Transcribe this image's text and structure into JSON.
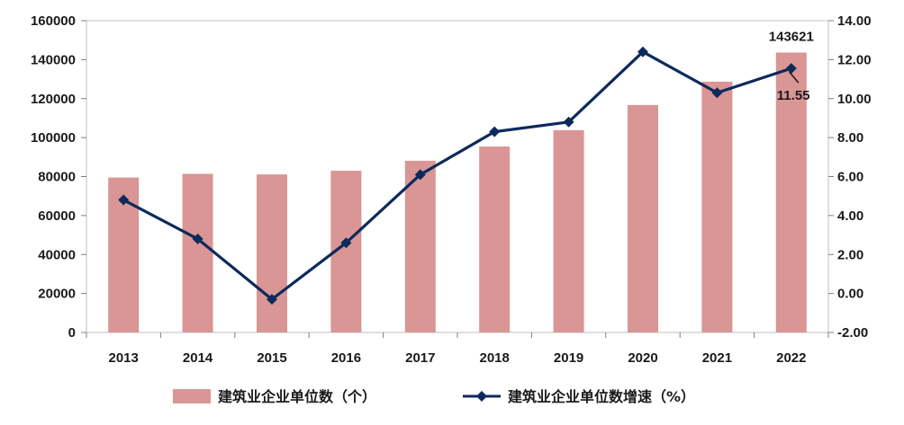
{
  "chart_data": {
    "type": "bar+line",
    "categories": [
      "2013",
      "2014",
      "2015",
      "2016",
      "2017",
      "2018",
      "2019",
      "2020",
      "2021",
      "2022"
    ],
    "series": [
      {
        "name": "建筑业企业单位数（个）",
        "type": "bar",
        "axis": "left",
        "color": "#d99694",
        "values": [
          79500,
          81400,
          81100,
          83000,
          88100,
          95400,
          103800,
          116700,
          128700,
          143621
        ]
      },
      {
        "name": "建筑业企业单位数增速（%）",
        "type": "line",
        "axis": "right",
        "color": "#0d2a5c",
        "values": [
          4.8,
          2.8,
          -0.3,
          2.6,
          6.1,
          8.3,
          8.8,
          12.4,
          10.3,
          11.55
        ]
      }
    ],
    "y_left": {
      "ylim": [
        0,
        160000
      ],
      "ticks": [
        "0",
        "20000",
        "40000",
        "60000",
        "80000",
        "100000",
        "120000",
        "140000",
        "160000"
      ]
    },
    "y_right": {
      "ylim": [
        -2,
        14
      ],
      "ticks": [
        "-2.00",
        "0.00",
        "2.00",
        "4.00",
        "6.00",
        "8.00",
        "10.00",
        "12.00",
        "14.00"
      ]
    },
    "annotations": [
      {
        "text": "143621",
        "target": "bar",
        "index": 9
      },
      {
        "text": "11.55",
        "target": "line",
        "index": 9
      }
    ],
    "legend_position": "bottom",
    "grid": false
  }
}
